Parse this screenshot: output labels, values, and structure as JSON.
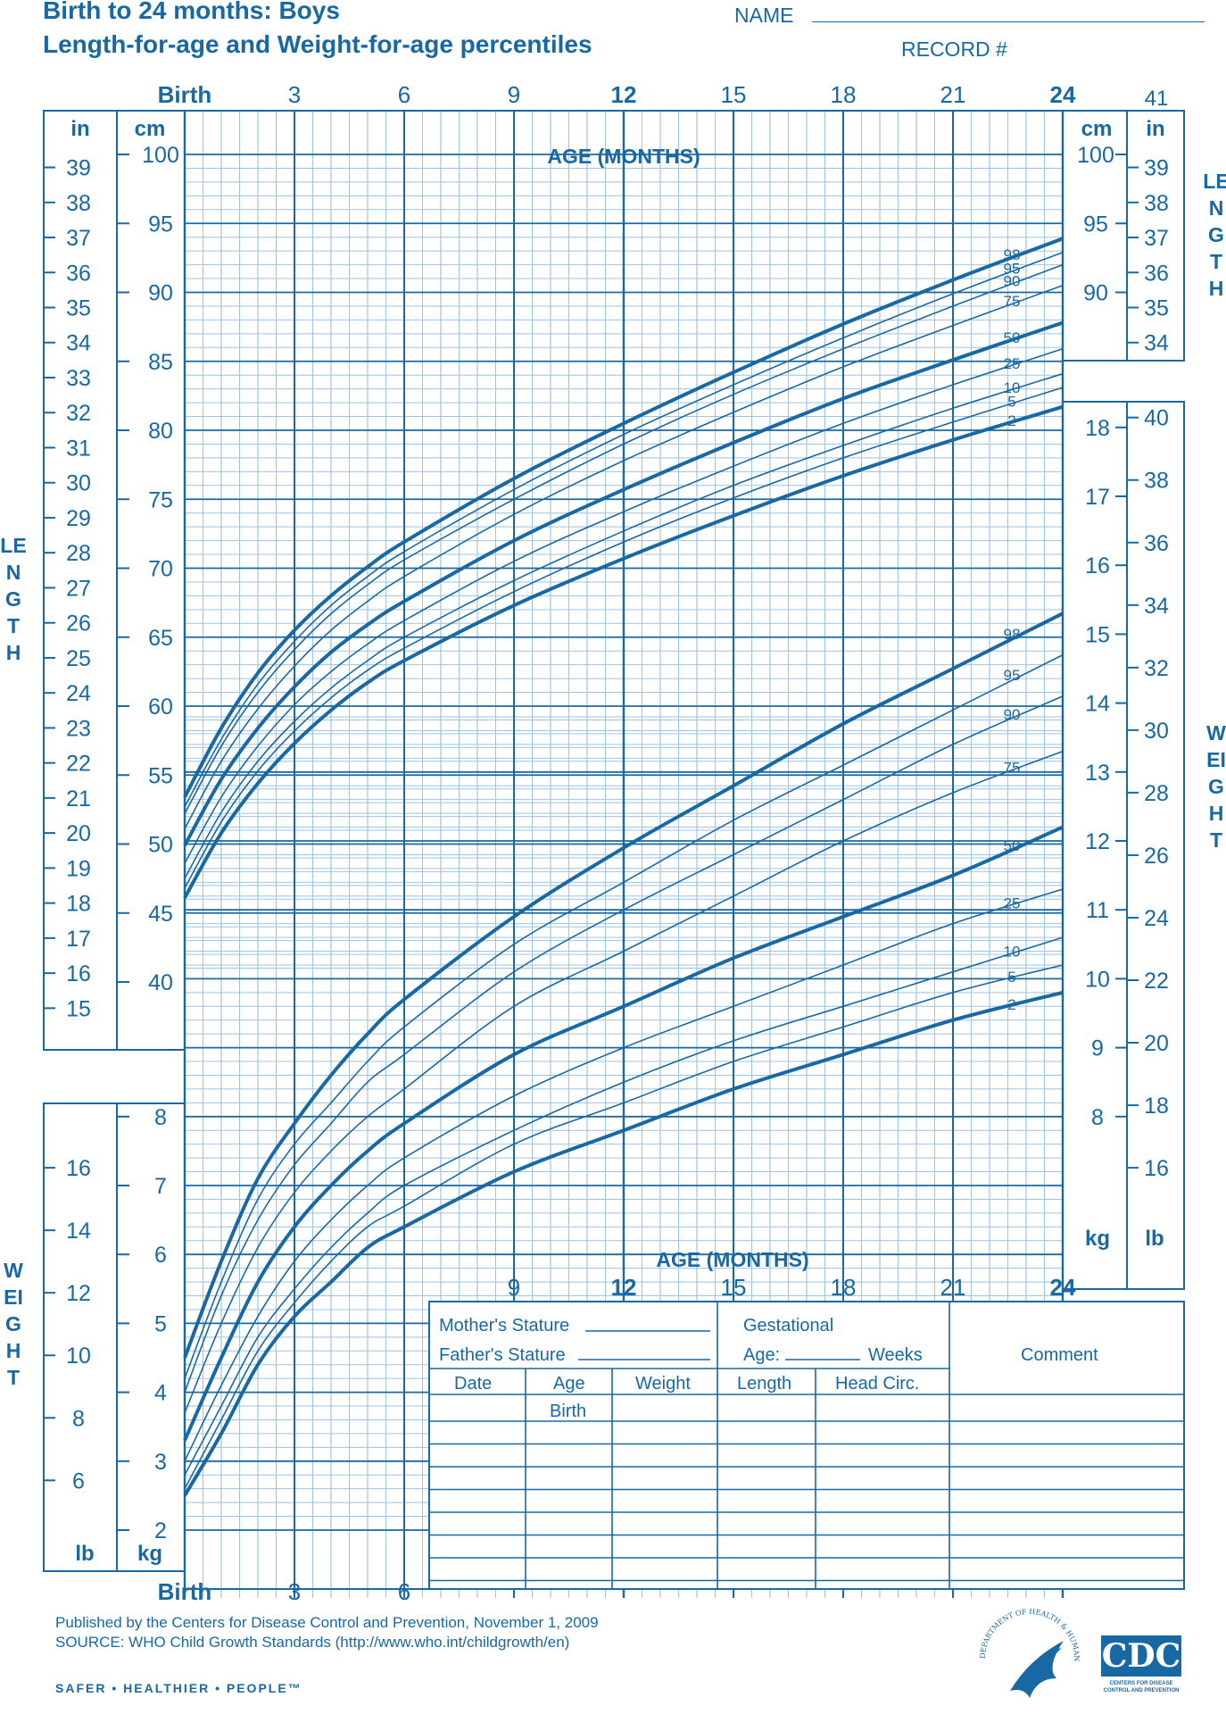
{
  "header": {
    "title_line1": "Birth to 24 months: Boys",
    "title_line2": "Length-for-age and Weight-for-age percentiles",
    "name_label": "NAME",
    "record_label": "RECORD #"
  },
  "side_labels": {
    "length": "LENGTH",
    "weight": "WEIGHT"
  },
  "axis": {
    "top_ticks": [
      "Birth",
      "3",
      "6",
      "9",
      "12",
      "15",
      "18",
      "21",
      "24"
    ],
    "top_extra": "41",
    "age_title": "AGE (MONTHS)",
    "bottom_ticks_left": [
      "Birth",
      "3",
      "6"
    ],
    "bottom_ticks_mid": [
      "9",
      "12",
      "15",
      "18",
      "21",
      "24"
    ],
    "unit_in": "in",
    "unit_cm": "cm",
    "unit_kg": "kg",
    "unit_lb": "lb",
    "length_cm_ticks": [
      "100",
      "95",
      "90",
      "85",
      "80",
      "75",
      "70",
      "65",
      "60",
      "55",
      "50",
      "45",
      "40"
    ],
    "length_in_ticks_left": [
      "39",
      "38",
      "37",
      "36",
      "35",
      "34",
      "33",
      "32",
      "31",
      "30",
      "29",
      "28",
      "27",
      "26",
      "25",
      "24",
      "23",
      "22",
      "21",
      "20",
      "19",
      "18",
      "17",
      "16",
      "15"
    ],
    "length_in_ticks_right": [
      "39",
      "38",
      "37",
      "36",
      "35",
      "34"
    ],
    "right_cm_ticks": [
      "100",
      "95",
      "90"
    ],
    "weight_kg_ticks_right": [
      "18",
      "17",
      "16",
      "15",
      "14",
      "13",
      "12",
      "11",
      "10",
      "9",
      "8"
    ],
    "weight_lb_ticks_right": [
      "40",
      "38",
      "36",
      "34",
      "32",
      "30",
      "28",
      "26",
      "24",
      "22",
      "20",
      "18",
      "16"
    ],
    "weight_kg_ticks_left": [
      "8",
      "7",
      "6",
      "5",
      "4",
      "3",
      "2"
    ],
    "weight_lb_ticks_left": [
      "16",
      "14",
      "12",
      "10",
      "8",
      "6"
    ]
  },
  "table": {
    "mothers_stature": "Mother's Stature",
    "fathers_stature": "Father's Stature",
    "gestational": "Gestational",
    "age_label": "Age:",
    "weeks": "Weeks",
    "comment": "Comment",
    "columns": [
      "Date",
      "Age",
      "Weight",
      "Length",
      "Head  Circ."
    ],
    "first_row_age": "Birth"
  },
  "footer": {
    "line1": "Published by the Centers for Disease Control and Prevention, November 1, 2009",
    "line2": "SOURCE:  WHO Child Growth Standards (http://www.who.int/childgrowth/en)",
    "tagline": "SAFER • HEALTHIER • PEOPLE™"
  },
  "logos": {
    "hhs_seal": "DEPARTMENT OF HEALTH & HUMAN SERVICES • USA",
    "cdc_logo_text": "CDC",
    "cdc_subtitle": "CENTERS FOR DISEASE CONTROL AND PREVENTION"
  },
  "colors": {
    "primary": "#1868a4",
    "grid_light": "#9ec3e3"
  },
  "chart_data": [
    {
      "type": "line",
      "title": "Length-for-age",
      "xlabel": "AGE (MONTHS)",
      "ylabel": "LENGTH",
      "x": [
        0,
        1,
        2,
        3,
        4,
        5,
        6,
        9,
        12,
        15,
        18,
        21,
        24
      ],
      "xlim": [
        0,
        24
      ],
      "ylim": [
        40,
        100
      ],
      "y_unit": "cm",
      "series": [
        {
          "name": "98",
          "values": [
            53.4,
            58.4,
            62.4,
            65.5,
            68.0,
            70.1,
            71.9,
            76.5,
            80.5,
            84.2,
            87.7,
            90.9,
            93.9
          ]
        },
        {
          "name": "95",
          "values": [
            52.7,
            57.6,
            61.6,
            64.7,
            67.3,
            69.4,
            71.2,
            75.7,
            79.7,
            83.3,
            86.7,
            89.9,
            92.9
          ]
        },
        {
          "name": "90",
          "values": [
            52.2,
            57.1,
            61.0,
            64.1,
            66.7,
            68.8,
            70.6,
            75.0,
            79.0,
            82.6,
            85.9,
            89.0,
            92.0
          ]
        },
        {
          "name": "75",
          "values": [
            51.1,
            56.0,
            59.8,
            62.9,
            65.5,
            67.6,
            69.4,
            73.9,
            77.8,
            81.3,
            84.6,
            87.6,
            90.5
          ]
        },
        {
          "name": "50",
          "values": [
            49.9,
            54.7,
            58.4,
            61.4,
            63.9,
            65.9,
            67.6,
            72.0,
            75.7,
            79.1,
            82.3,
            85.1,
            87.8
          ]
        },
        {
          "name": "25",
          "values": [
            48.6,
            53.4,
            57.1,
            60.1,
            62.5,
            64.5,
            66.2,
            70.5,
            74.1,
            77.4,
            80.5,
            83.3,
            85.9
          ]
        },
        {
          "name": "10",
          "values": [
            47.5,
            52.3,
            56.0,
            58.9,
            61.3,
            63.3,
            65.0,
            69.1,
            72.7,
            76.0,
            78.9,
            81.6,
            84.1
          ]
        },
        {
          "name": "5",
          "values": [
            46.8,
            51.6,
            55.3,
            58.2,
            60.6,
            62.6,
            64.2,
            68.3,
            71.9,
            75.1,
            78.0,
            80.6,
            83.1
          ]
        },
        {
          "name": "2",
          "values": [
            46.1,
            50.8,
            54.4,
            57.3,
            59.7,
            61.7,
            63.3,
            67.3,
            70.7,
            73.8,
            76.7,
            79.3,
            81.7
          ]
        }
      ]
    },
    {
      "type": "line",
      "title": "Weight-for-age",
      "xlabel": "AGE (MONTHS)",
      "ylabel": "WEIGHT",
      "x": [
        0,
        1,
        2,
        3,
        4,
        5,
        6,
        9,
        12,
        15,
        18,
        21,
        24
      ],
      "xlim": [
        0,
        24
      ],
      "ylim": [
        1.5,
        16
      ],
      "y_unit": "kg",
      "series": [
        {
          "name": "98",
          "values": [
            4.5,
            5.9,
            7.1,
            7.9,
            8.6,
            9.2,
            9.7,
            10.9,
            11.9,
            12.8,
            13.7,
            14.5,
            15.3
          ]
        },
        {
          "name": "95",
          "values": [
            4.2,
            5.6,
            6.8,
            7.6,
            8.2,
            8.8,
            9.3,
            10.5,
            11.4,
            12.3,
            13.1,
            13.9,
            14.7
          ]
        },
        {
          "name": "90",
          "values": [
            4.0,
            5.4,
            6.5,
            7.3,
            7.9,
            8.5,
            8.9,
            10.1,
            11.0,
            11.8,
            12.6,
            13.4,
            14.1
          ]
        },
        {
          "name": "75",
          "values": [
            3.7,
            5.0,
            6.1,
            6.9,
            7.5,
            8.0,
            8.4,
            9.6,
            10.4,
            11.2,
            12.0,
            12.7,
            13.3
          ]
        },
        {
          "name": "50",
          "values": [
            3.3,
            4.5,
            5.6,
            6.4,
            7.0,
            7.5,
            7.9,
            8.9,
            9.6,
            10.3,
            10.9,
            11.5,
            12.2
          ]
        },
        {
          "name": "25",
          "values": [
            3.0,
            4.1,
            5.1,
            5.9,
            6.5,
            7.0,
            7.4,
            8.3,
            9.0,
            9.6,
            10.2,
            10.8,
            11.3
          ]
        },
        {
          "name": "10",
          "values": [
            2.8,
            3.8,
            4.8,
            5.5,
            6.1,
            6.6,
            7.0,
            7.8,
            8.5,
            9.1,
            9.6,
            10.1,
            10.6
          ]
        },
        {
          "name": "5",
          "values": [
            2.6,
            3.6,
            4.6,
            5.3,
            5.9,
            6.4,
            6.7,
            7.6,
            8.2,
            8.8,
            9.3,
            9.8,
            10.2
          ]
        },
        {
          "name": "2",
          "values": [
            2.5,
            3.4,
            4.4,
            5.1,
            5.6,
            6.1,
            6.4,
            7.2,
            7.8,
            8.4,
            8.9,
            9.4,
            9.8
          ]
        }
      ]
    }
  ]
}
